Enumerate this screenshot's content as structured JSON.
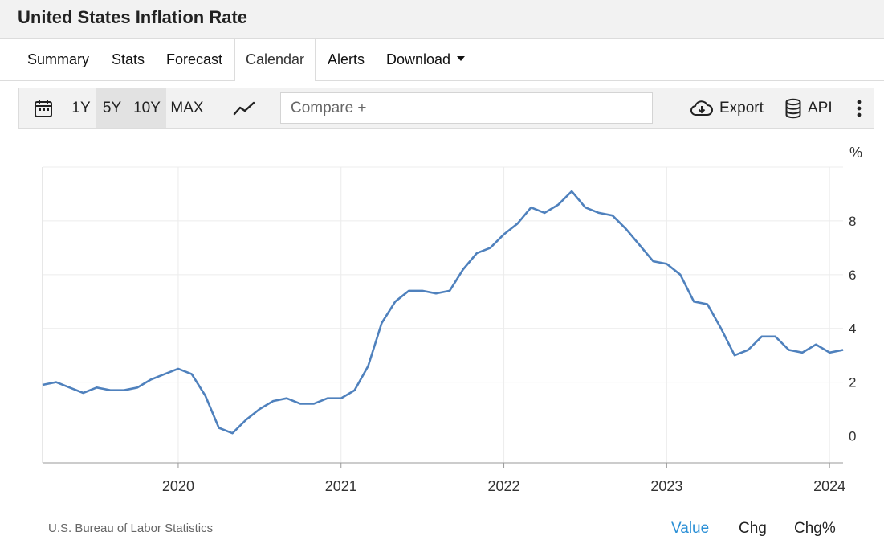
{
  "header": {
    "title": "United States Inflation Rate"
  },
  "tabs": [
    {
      "label": "Summary"
    },
    {
      "label": "Stats"
    },
    {
      "label": "Forecast"
    },
    {
      "label": "Calendar",
      "active": true
    },
    {
      "label": "Alerts"
    },
    {
      "label": "Download"
    }
  ],
  "toolbar": {
    "ranges": [
      "1Y",
      "5Y",
      "10Y",
      "MAX"
    ],
    "selected_range": "5Y",
    "compare_placeholder": "Compare +",
    "export_label": "Export",
    "api_label": "API"
  },
  "colors": {
    "line": "#4f81bd",
    "accent": "#2a8fd6",
    "grid": "#ececec"
  },
  "chart_data": {
    "type": "line",
    "title": "United States Inflation Rate",
    "ylabel": "%",
    "xlabel": "",
    "ylim": [
      -1,
      10
    ],
    "yticks": [
      0,
      2,
      4,
      6,
      8
    ],
    "xlim": [
      2019.167,
      2024.083
    ],
    "xticks": [
      2020,
      2021,
      2022,
      2023,
      2024
    ],
    "grid": true,
    "series": [
      {
        "name": "Inflation Rate",
        "start": "2019-03",
        "frequency": "monthly",
        "values": [
          1.9,
          2.0,
          1.8,
          1.6,
          1.8,
          1.7,
          1.7,
          1.8,
          2.1,
          2.3,
          2.5,
          2.3,
          1.5,
          0.3,
          0.1,
          0.6,
          1.0,
          1.3,
          1.4,
          1.2,
          1.2,
          1.4,
          1.4,
          1.7,
          2.6,
          4.2,
          5.0,
          5.4,
          5.4,
          5.3,
          5.4,
          6.2,
          6.8,
          7.0,
          7.5,
          7.9,
          8.5,
          8.3,
          8.6,
          9.1,
          8.5,
          8.3,
          8.2,
          7.7,
          7.1,
          6.5,
          6.4,
          6.0,
          5.0,
          4.9,
          4.0,
          3.0,
          3.2,
          3.7,
          3.7,
          3.2,
          3.1,
          3.4,
          3.1,
          3.2
        ]
      }
    ]
  },
  "footer": {
    "source": "U.S. Bureau of Labor Statistics",
    "views": [
      {
        "label": "Value",
        "active": true
      },
      {
        "label": "Chg"
      },
      {
        "label": "Chg%"
      }
    ]
  }
}
